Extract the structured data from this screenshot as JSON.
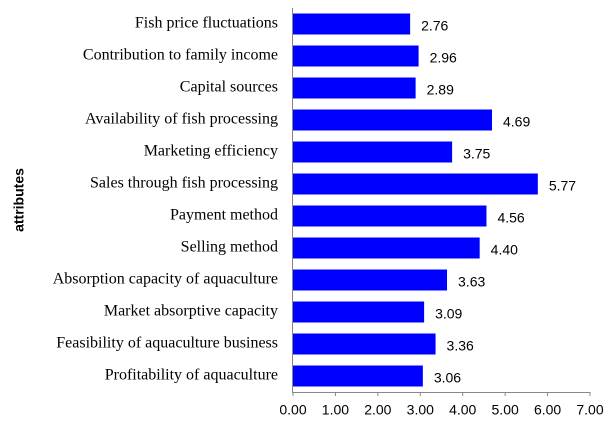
{
  "chart_data": {
    "type": "barh",
    "y_axis_label": "attributes",
    "categories": [
      "Fish price fluctuations",
      "Contribution to family income",
      "Capital sources",
      "Availability of fish processing",
      "Marketing efficiency",
      "Sales through fish processing",
      "Payment method",
      "Selling method",
      "Absorption capacity of aquaculture",
      "Market absorptive capacity",
      "Feasibility of aquaculture business",
      "Profitability of aquaculture"
    ],
    "values": [
      2.76,
      2.96,
      2.89,
      4.69,
      3.75,
      5.77,
      4.56,
      4.4,
      3.63,
      3.09,
      3.36,
      3.06
    ],
    "value_labels": [
      "2.76",
      "2.96",
      "2.89",
      "4.69",
      "3.75",
      "5.77",
      "4.56",
      "4.40",
      "3.63",
      "3.09",
      "3.36",
      "3.06"
    ],
    "color": "#0000ff",
    "xlim": [
      0,
      7
    ],
    "xticks": [
      {
        "value": 0,
        "label": "0.00"
      },
      {
        "value": 1,
        "label": "1.00"
      },
      {
        "value": 2,
        "label": "2.00"
      },
      {
        "value": 3,
        "label": "3.00"
      },
      {
        "value": 4,
        "label": "4.00"
      },
      {
        "value": 5,
        "label": "5.00"
      },
      {
        "value": 6,
        "label": "6.00"
      },
      {
        "value": 7,
        "label": "7.00"
      }
    ],
    "grid": false
  }
}
